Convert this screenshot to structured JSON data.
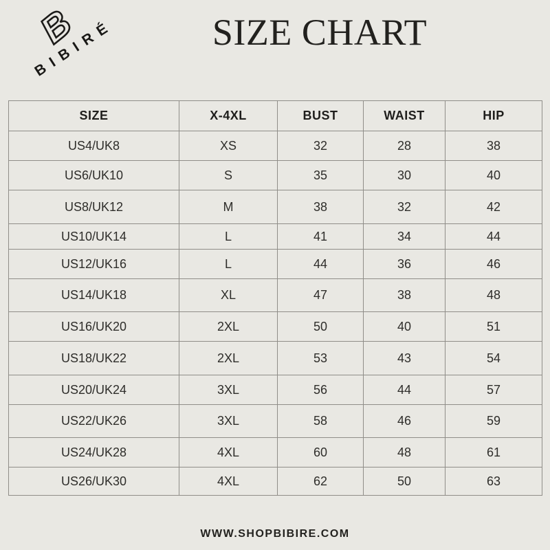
{
  "brand": {
    "monogram": "B",
    "logo_text": "BIBIRÉ"
  },
  "header": {
    "title": "SIZE CHART"
  },
  "table": {
    "columns": [
      "SIZE",
      "X-4XL",
      "BUST",
      "WAIST",
      "HIP"
    ],
    "rows": [
      [
        "US4/UK8",
        "XS",
        "32",
        "28",
        "38"
      ],
      [
        "US6/UK10",
        "S",
        "35",
        "30",
        "40"
      ],
      [
        "US8/UK12",
        "M",
        "38",
        "32",
        "42"
      ],
      [
        "US10/UK14",
        "L",
        "41",
        "34",
        "44"
      ],
      [
        "US12/UK16",
        "L",
        "44",
        "36",
        "46"
      ],
      [
        "US14/UK18",
        "XL",
        "47",
        "38",
        "48"
      ],
      [
        "US16/UK20",
        "2XL",
        "50",
        "40",
        "51"
      ],
      [
        "US18/UK22",
        "2XL",
        "53",
        "43",
        "54"
      ],
      [
        "US20/UK24",
        "3XL",
        "56",
        "44",
        "57"
      ],
      [
        "US22/UK26",
        "3XL",
        "58",
        "46",
        "59"
      ],
      [
        "US24/UK28",
        "4XL",
        "60",
        "48",
        "61"
      ],
      [
        "US26/UK30",
        "4XL",
        "62",
        "50",
        "63"
      ]
    ]
  },
  "footer": {
    "website": "WWW.SHOPBIBIRE.COM"
  },
  "colors": {
    "background": "#e9e8e3",
    "ink": "#22211e",
    "table_border": "#8f8d88",
    "body_text": "#2e2d2a"
  }
}
